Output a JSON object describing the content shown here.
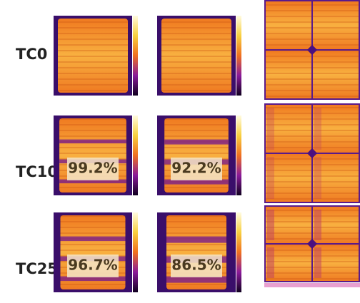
{
  "rows": [
    {
      "label": "TC0"
    },
    {
      "label": "TC10",
      "retention": [
        "99.2%",
        "92.2%"
      ]
    },
    {
      "label": "TC25",
      "retention": [
        "96.7%",
        "86.5%"
      ]
    }
  ]
}
